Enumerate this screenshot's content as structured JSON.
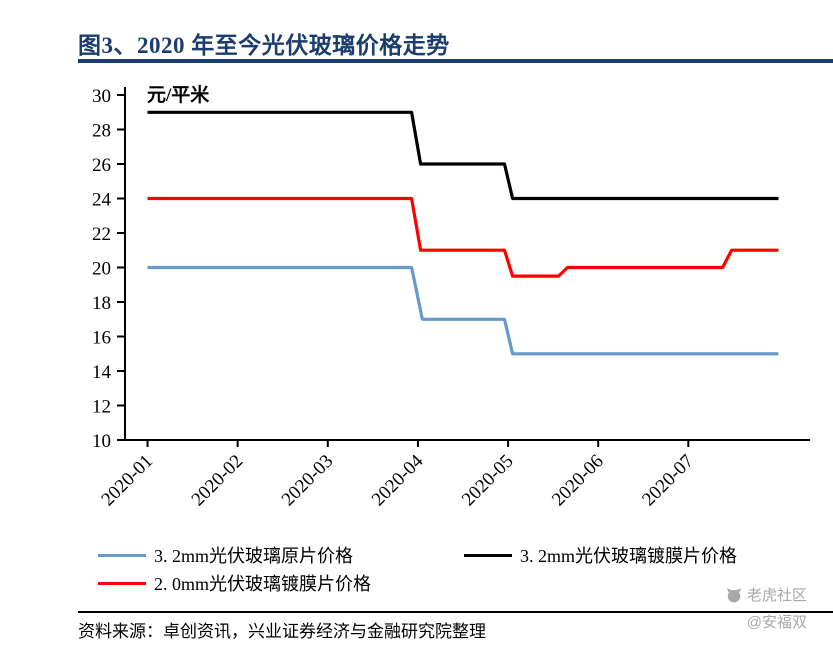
{
  "chart_data": {
    "type": "line",
    "title": "图3、2020 年至今光伏玻璃价格走势",
    "unit_label": "元/平米",
    "xlabel": "",
    "ylabel": "",
    "x_tick_labels": [
      "2020-01",
      "2020-02",
      "2020-03",
      "2020-04",
      "2020-05",
      "2020-06",
      "2020-07"
    ],
    "x_encoding": "months since 2020-01",
    "xlim": [
      -0.25,
      7.35
    ],
    "ylim": [
      10,
      30
    ],
    "ytick_step": 2,
    "grid": false,
    "legend_position": "bottom",
    "series": [
      {
        "name": "3. 2mm光伏玻璃原片价格",
        "color": "#6699CC",
        "points": [
          [
            0,
            20
          ],
          [
            2.93,
            20
          ],
          [
            3.05,
            17
          ],
          [
            3.96,
            17
          ],
          [
            4.05,
            15
          ],
          [
            7.0,
            15
          ]
        ]
      },
      {
        "name": "2. 0mm光伏玻璃镀膜片价格",
        "color": "#FF0000",
        "points": [
          [
            0,
            24
          ],
          [
            2.93,
            24
          ],
          [
            3.03,
            21
          ],
          [
            3.96,
            21
          ],
          [
            4.05,
            19.5
          ],
          [
            4.56,
            19.5
          ],
          [
            4.66,
            20
          ],
          [
            6.38,
            20
          ],
          [
            6.48,
            21
          ],
          [
            7.0,
            21
          ]
        ]
      },
      {
        "name": "3. 2mm光伏玻璃镀膜片价格",
        "color": "#000000",
        "points": [
          [
            0,
            29
          ],
          [
            2.93,
            29
          ],
          [
            3.03,
            26
          ],
          [
            3.96,
            26
          ],
          [
            4.05,
            24
          ],
          [
            7.0,
            24
          ]
        ]
      }
    ]
  },
  "source_note": "资料来源：卓创资讯，兴业证券经济与金融研究院整理",
  "watermark": {
    "community": "老虎社区",
    "author": "@安福双"
  },
  "colors": {
    "title": "#1B3C6D",
    "title_rule": "#1B3C6D",
    "bottom_rule": "#000000",
    "watermark": "#A8A8A8"
  }
}
